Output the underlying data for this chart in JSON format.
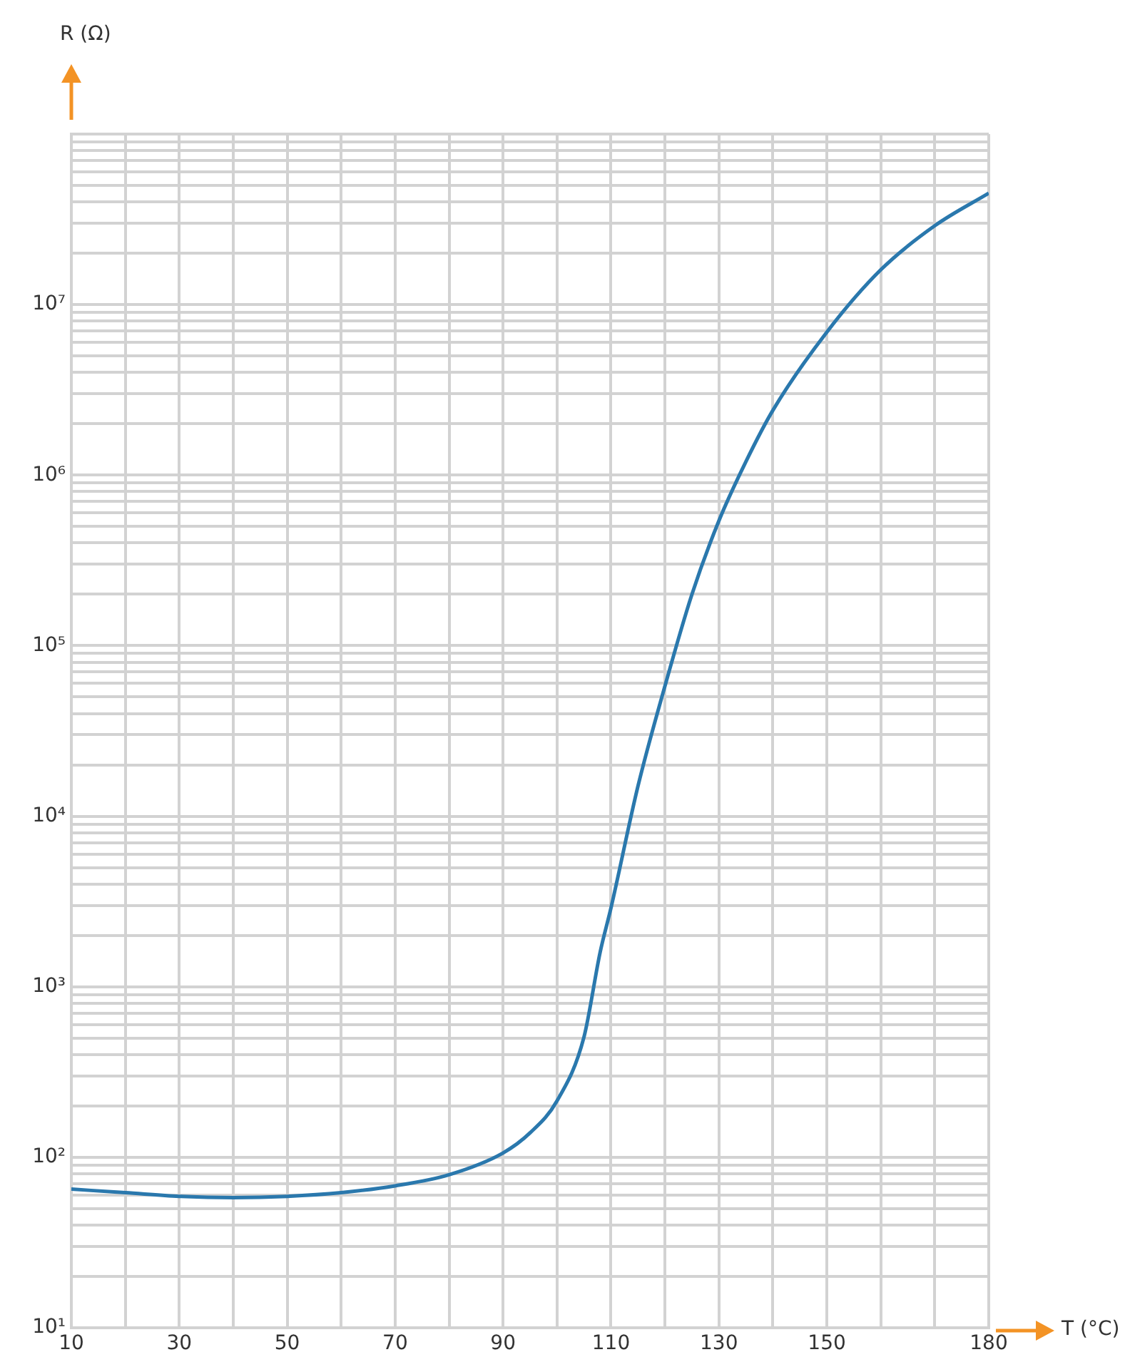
{
  "chart_data": {
    "type": "line",
    "xlabel": "T (°C)",
    "ylabel": "R (Ω)",
    "x": [
      10,
      20,
      30,
      40,
      50,
      60,
      70,
      80,
      90,
      95,
      100,
      105,
      108,
      110,
      115,
      120,
      125,
      130,
      135,
      140,
      150,
      160,
      170,
      180
    ],
    "series": [
      {
        "color": "#2a78ad",
        "values": [
          65,
          62,
          59,
          58,
          59,
          62,
          68,
          79,
          106,
          139,
          214,
          508,
          1600,
          2900,
          15000,
          58000,
          200000,
          540000,
          1200000,
          2400000,
          6900000,
          16000000,
          29000000,
          45000000
        ]
      }
    ],
    "xlim": [
      10,
      180
    ],
    "xticks": [
      10,
      {
        "value": 20,
        "label": null
      },
      30,
      {
        "value": 40,
        "label": null
      },
      50,
      {
        "value": 60,
        "label": null
      },
      70,
      {
        "value": 80,
        "label": null
      },
      90,
      {
        "value": 100,
        "label": null
      },
      110,
      {
        "value": 120,
        "label": null
      },
      130,
      {
        "value": 140,
        "label": null
      },
      150,
      {
        "value": 160,
        "label": null
      },
      {
        "value": 170,
        "label": null
      },
      180
    ],
    "ylim": [
      10,
      100000000
    ],
    "yticks": [
      {
        "value": 10,
        "label": "10¹"
      },
      {
        "value": 20,
        "label": null
      },
      {
        "value": 30,
        "label": null
      },
      {
        "value": 40,
        "label": null
      },
      {
        "value": 50,
        "label": null
      },
      {
        "value": 60,
        "label": null
      },
      {
        "value": 70,
        "label": null
      },
      {
        "value": 80,
        "label": null
      },
      {
        "value": 90,
        "label": null
      },
      {
        "value": 100,
        "label": "10²"
      },
      {
        "value": 200,
        "label": null
      },
      {
        "value": 300,
        "label": null
      },
      {
        "value": 400,
        "label": null
      },
      {
        "value": 500,
        "label": null
      },
      {
        "value": 600,
        "label": null
      },
      {
        "value": 700,
        "label": null
      },
      {
        "value": 800,
        "label": null
      },
      {
        "value": 900,
        "label": null
      },
      {
        "value": 1000,
        "label": "10³"
      },
      {
        "value": 2000,
        "label": null
      },
      {
        "value": 3000,
        "label": null
      },
      {
        "value": 4000,
        "label": null
      },
      {
        "value": 5000,
        "label": null
      },
      {
        "value": 6000,
        "label": null
      },
      {
        "value": 7000,
        "label": null
      },
      {
        "value": 8000,
        "label": null
      },
      {
        "value": 9000,
        "label": null
      },
      {
        "value": 10000,
        "label": "10⁴"
      },
      {
        "value": 20000,
        "label": null
      },
      {
        "value": 30000,
        "label": null
      },
      {
        "value": 40000,
        "label": null
      },
      {
        "value": 50000,
        "label": null
      },
      {
        "value": 60000,
        "label": null
      },
      {
        "value": 70000,
        "label": null
      },
      {
        "value": 80000,
        "label": null
      },
      {
        "value": 90000,
        "label": null
      },
      {
        "value": 100000,
        "label": "10⁵"
      },
      {
        "value": 200000,
        "label": null
      },
      {
        "value": 300000,
        "label": null
      },
      {
        "value": 400000,
        "label": null
      },
      {
        "value": 500000,
        "label": null
      },
      {
        "value": 600000,
        "label": null
      },
      {
        "value": 700000,
        "label": null
      },
      {
        "value": 800000,
        "label": null
      },
      {
        "value": 900000,
        "label": null
      },
      {
        "value": 1000000,
        "label": "10⁶"
      },
      {
        "value": 2000000,
        "label": null
      },
      {
        "value": 3000000,
        "label": null
      },
      {
        "value": 4000000,
        "label": null
      },
      {
        "value": 5000000,
        "label": null
      },
      {
        "value": 6000000,
        "label": null
      },
      {
        "value": 7000000,
        "label": null
      },
      {
        "value": 8000000,
        "label": null
      },
      {
        "value": 9000000,
        "label": null
      },
      {
        "value": 10000000,
        "label": "10⁷"
      },
      {
        "value": 20000000,
        "label": null
      },
      {
        "value": 30000000,
        "label": null
      },
      {
        "value": 40000000,
        "label": null
      },
      {
        "value": 50000000,
        "label": null
      },
      {
        "value": 60000000,
        "label": null
      },
      {
        "value": 70000000,
        "label": null
      },
      {
        "value": 80000000,
        "label": null
      },
      {
        "value": 90000000,
        "label": null
      },
      {
        "value": 100000000,
        "label": null
      }
    ],
    "log": "y",
    "grid": true,
    "marker": "none",
    "line_style": "solid"
  }
}
